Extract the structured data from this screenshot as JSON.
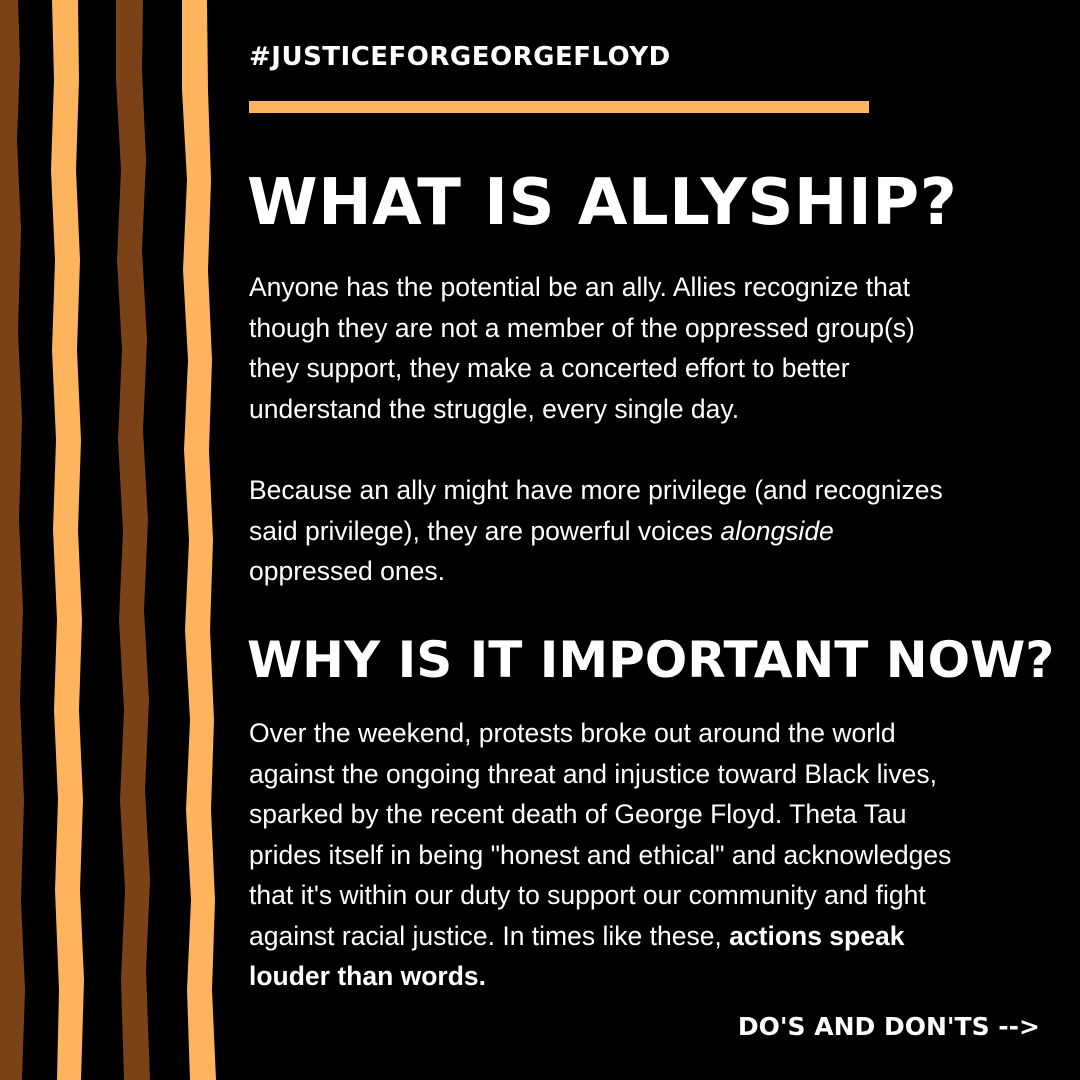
{
  "colors": {
    "background": "#000000",
    "text": "#ffffff",
    "accent_light": "#fdb45c",
    "accent_dark": "#7a4216"
  },
  "header": {
    "hashtag": "#JUSTICEFORGEORGEFLOYD"
  },
  "section_1": {
    "heading": "WHAT IS ALLYSHIP?",
    "paragraph_1": {
      "lines": [
        "Anyone has the potential be an ally. Allies recognize that",
        "though they are not a member of the oppressed group(s)",
        "they support, they make a concerted effort to better",
        "understand the struggle, every single day."
      ]
    },
    "paragraph_2": {
      "line_1": "Because an ally might have more privilege (and recognizes",
      "line_2_before": "said privilege), they are powerful voices ",
      "line_2_emphasis": "alongside",
      "line_3": "oppressed ones."
    }
  },
  "section_2": {
    "heading": "WHY IS IT IMPORTANT NOW?",
    "paragraph": {
      "lines": [
        "Over the weekend, protests broke out around the world",
        "against the ongoing threat and injustice toward Black lives,",
        "sparked by the recent death of George Floyd. Theta Tau",
        "prides itself in being \"honest and ethical\" and acknowledges",
        "that it's within our duty to support our community and fight"
      ],
      "line_6_before": "against racial justice. In times like these, ",
      "line_6_bold": "actions speak",
      "line_7_bold": "louder than words."
    }
  },
  "footer": {
    "next_label": "DO'S AND DON'TS -->"
  }
}
